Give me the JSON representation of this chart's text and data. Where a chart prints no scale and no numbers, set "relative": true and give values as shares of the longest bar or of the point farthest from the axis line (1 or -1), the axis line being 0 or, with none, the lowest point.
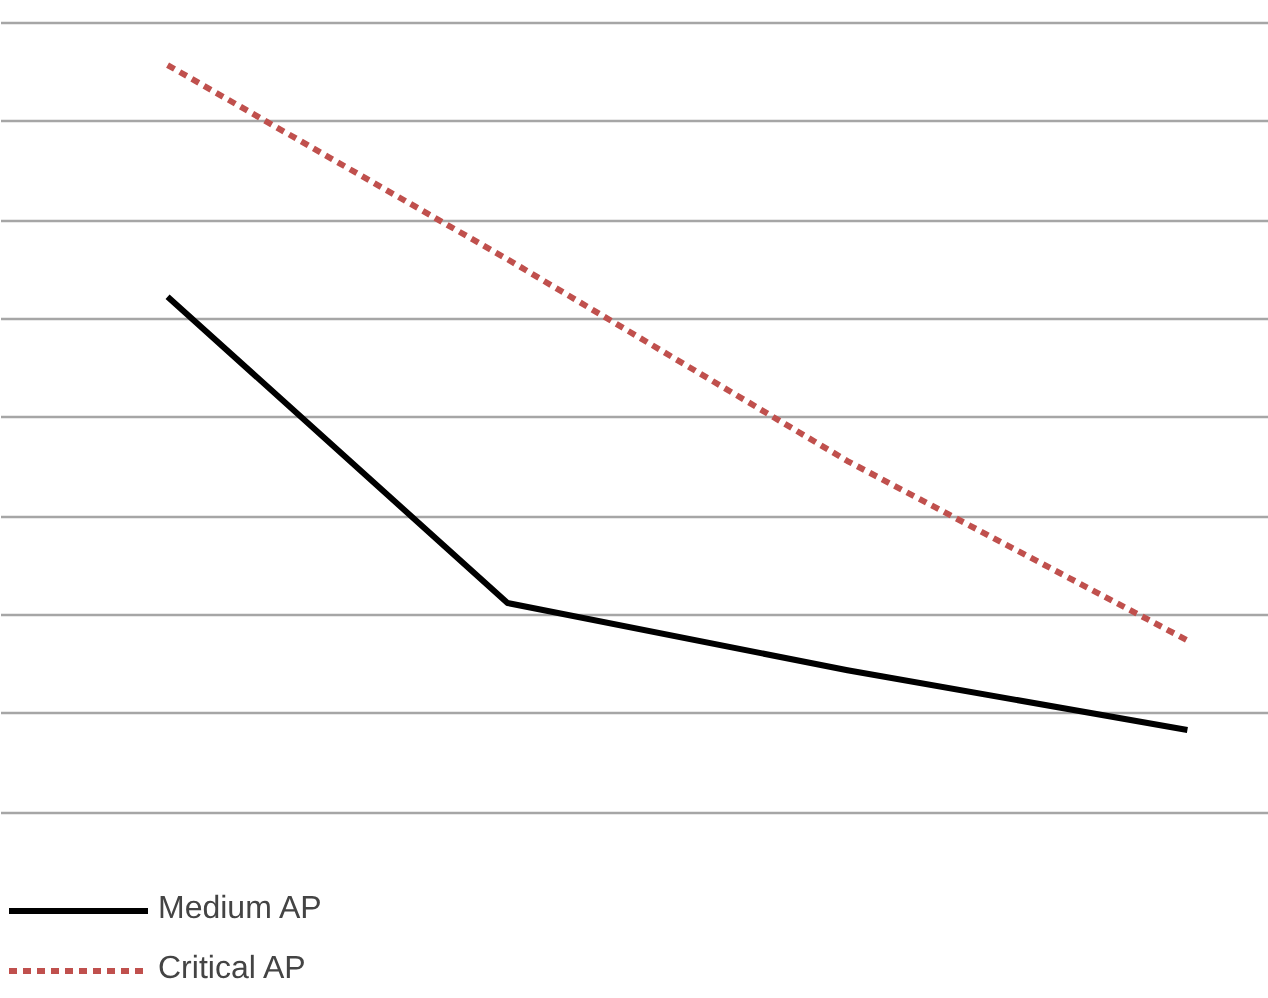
{
  "chart_data": {
    "type": "line",
    "relative": true,
    "categories": [
      null,
      null,
      null,
      null
    ],
    "series": [
      {
        "name": "Medium AP",
        "color": "#000000",
        "values": [
          0.69,
          0.28,
          0.19,
          0.11
        ],
        "line_style": "solid"
      },
      {
        "name": "Critical AP",
        "color": "#c0504d",
        "values": [
          1,
          0.74,
          0.47,
          0.23
        ],
        "line_style": "dashed"
      }
    ],
    "grid": "y",
    "legend": "bottom left"
  }
}
